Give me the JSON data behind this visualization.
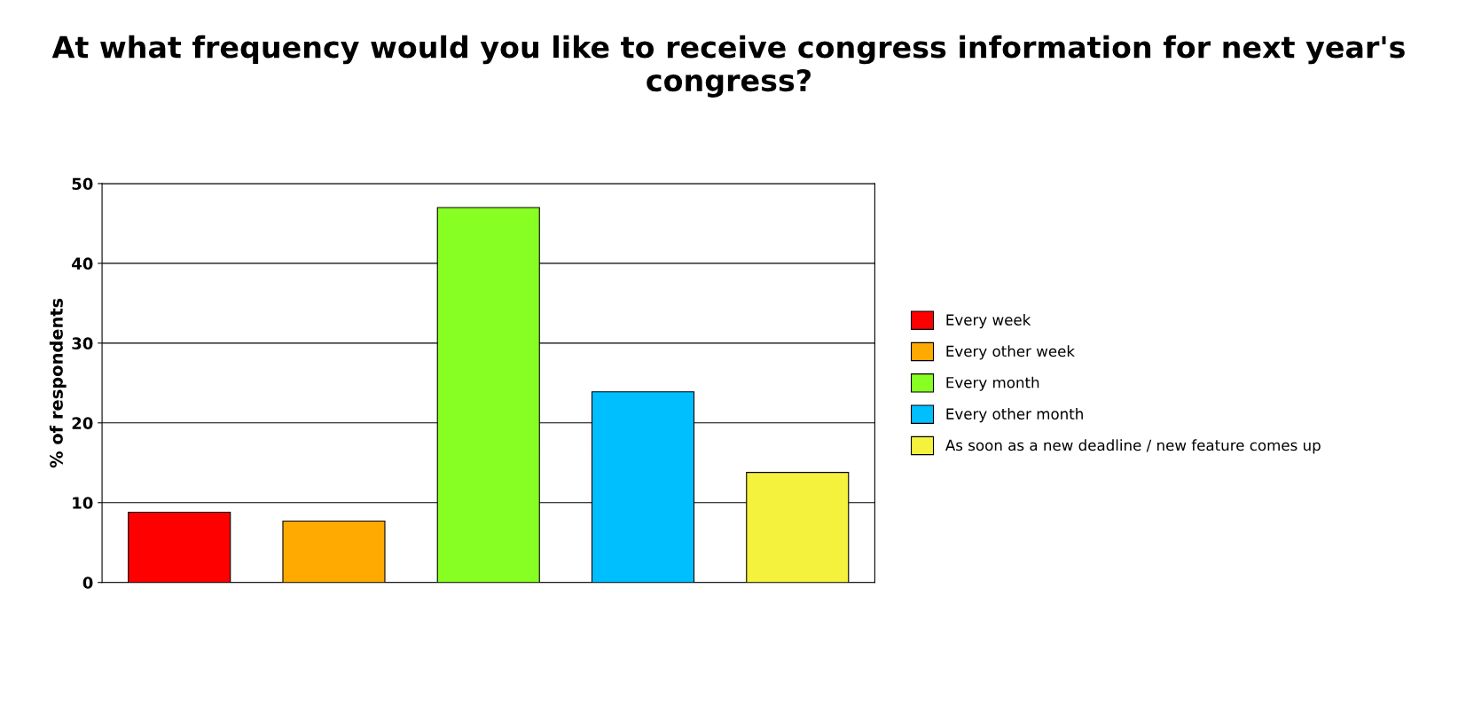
{
  "chart_data": {
    "type": "bar",
    "title": "At what frequency would you like to receive congress information for next year's congress?",
    "ylabel": "% of respondents",
    "categories": [
      null,
      null,
      null,
      null,
      null
    ],
    "series": [
      {
        "name": "Every week",
        "color": "#ff0000",
        "values": [
          8.8,
          null,
          null,
          null,
          null
        ]
      },
      {
        "name": "Every other week",
        "color": "#ffaa00",
        "values": [
          null,
          7.7,
          null,
          null,
          null
        ]
      },
      {
        "name": "Every month",
        "color": "#88ff22",
        "values": [
          null,
          null,
          47.0,
          null,
          null
        ]
      },
      {
        "name": "Every other month",
        "color": "#00bfff",
        "values": [
          null,
          null,
          null,
          23.9,
          null
        ]
      },
      {
        "name": "As soon as a new deadline / new feature comes up",
        "color": "#f4f23c",
        "values": [
          null,
          null,
          null,
          null,
          13.8
        ]
      }
    ],
    "ylim": [
      0,
      50
    ],
    "yticks": [
      0,
      10,
      20,
      30,
      40,
      50
    ],
    "grid": "y",
    "legend": "right",
    "tick_labels": "y"
  }
}
